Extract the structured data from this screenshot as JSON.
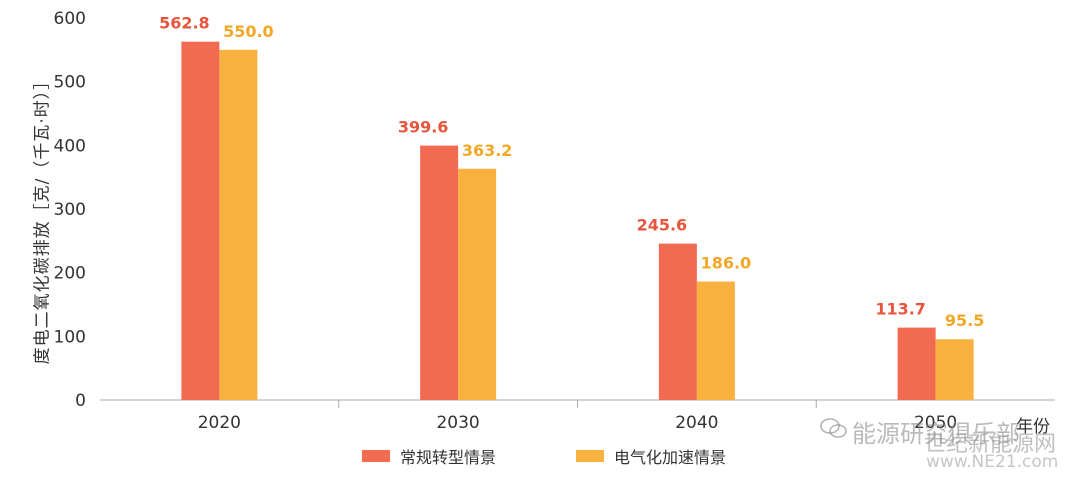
{
  "chart_data": {
    "type": "bar",
    "title": "",
    "xlabel": "年份",
    "ylabel": "度电二氧化碳排放［克/（千瓦·时）］",
    "ylim": [
      0,
      600
    ],
    "yticks": [
      0,
      100,
      200,
      300,
      400,
      500,
      600
    ],
    "categories": [
      "2020",
      "2030",
      "2040",
      "2050"
    ],
    "series": [
      {
        "name": "常规转型情景",
        "values": [
          562.8,
          399.6,
          245.6,
          113.7
        ],
        "labels": [
          "562.8",
          "399.6",
          "245.6",
          "113.7"
        ]
      },
      {
        "name": "电气化加速情景",
        "values": [
          550.0,
          363.2,
          186.0,
          95.5
        ],
        "labels": [
          "550.0",
          "363.2",
          "186.0",
          "95.5"
        ]
      }
    ],
    "colors": [
      "#f26a4f",
      "#f8b03e"
    ],
    "label_colors": [
      "#e8553d",
      "#f2a726"
    ],
    "legend_position": "bottom",
    "grid": false
  },
  "watermark": {
    "line1": "能源研究俱乐部",
    "line2": "世纪新能源网",
    "line3": "www.NE21.com"
  }
}
